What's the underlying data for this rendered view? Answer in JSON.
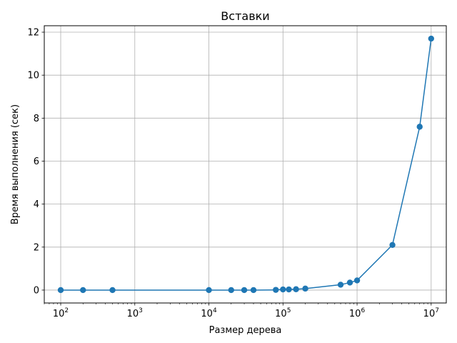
{
  "chart_data": {
    "type": "line",
    "title": "Вставки",
    "xlabel": "Размер дерева",
    "ylabel": "Время выполнения (сек)",
    "x_scale": "log",
    "xlim": [
      60,
      16000000
    ],
    "ylim": [
      -0.6,
      12.3
    ],
    "x_ticks": [
      {
        "value": 100,
        "base": "10",
        "exp": "2"
      },
      {
        "value": 1000,
        "base": "10",
        "exp": "3"
      },
      {
        "value": 10000,
        "base": "10",
        "exp": "4"
      },
      {
        "value": 100000,
        "base": "10",
        "exp": "5"
      },
      {
        "value": 1000000,
        "base": "10",
        "exp": "6"
      },
      {
        "value": 10000000,
        "base": "10",
        "exp": "7"
      }
    ],
    "y_ticks": [
      0,
      2,
      4,
      6,
      8,
      10,
      12
    ],
    "grid": true,
    "line_color": "#1f77b4",
    "series": [
      {
        "x": [
          100,
          200,
          500,
          10000,
          20000,
          30000,
          40000,
          80000,
          100000,
          120000,
          150000,
          200000,
          600000,
          800000,
          1000000,
          3000000,
          7000000,
          10000000
        ],
        "y": [
          0.0,
          0.0,
          0.0,
          0.0,
          0.0,
          0.0,
          0.0,
          0.01,
          0.03,
          0.03,
          0.04,
          0.07,
          0.25,
          0.35,
          0.45,
          2.1,
          7.6,
          11.7
        ]
      }
    ]
  }
}
